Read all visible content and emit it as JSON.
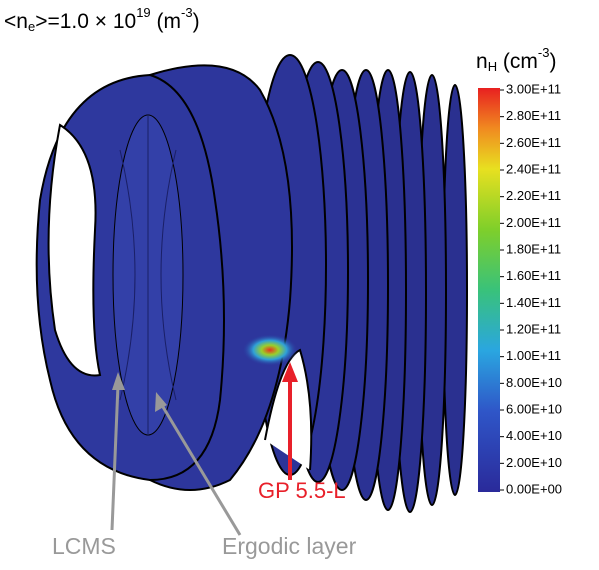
{
  "figure": {
    "title": {
      "parts": [
        "<n",
        "e",
        ">=1.0 × 10",
        "19",
        " (m",
        "-3",
        ")"
      ]
    },
    "colorbar": {
      "label_parts": [
        "n",
        "H",
        " (cm",
        "-3",
        ")"
      ],
      "clim": [
        0,
        300000000000
      ],
      "ticks": [
        {
          "value": 300000000000,
          "label": "3.00E+11"
        },
        {
          "value": 280000000000,
          "label": "2.80E+11"
        },
        {
          "value": 260000000000,
          "label": "2.60E+11"
        },
        {
          "value": 240000000000,
          "label": "2.40E+11"
        },
        {
          "value": 220000000000,
          "label": "2.20E+11"
        },
        {
          "value": 200000000000,
          "label": "2.00E+11"
        },
        {
          "value": 180000000000,
          "label": "1.80E+11"
        },
        {
          "value": 160000000000,
          "label": "1.60E+11"
        },
        {
          "value": 140000000000,
          "label": "1.40E+11"
        },
        {
          "value": 120000000000,
          "label": "1.20E+11"
        },
        {
          "value": 100000000000,
          "label": "1.00E+11"
        },
        {
          "value": 80000000000,
          "label": "8.00E+10"
        },
        {
          "value": 60000000000,
          "label": "6.00E+10"
        },
        {
          "value": 40000000000,
          "label": "4.00E+10"
        },
        {
          "value": 20000000000,
          "label": "2.00E+10"
        },
        {
          "value": 0,
          "label": "0.00E+00"
        }
      ]
    },
    "annotations": {
      "port": "GP 5.5-L",
      "lcms": "LCMS",
      "ergodic": "Ergodic layer"
    }
  }
}
